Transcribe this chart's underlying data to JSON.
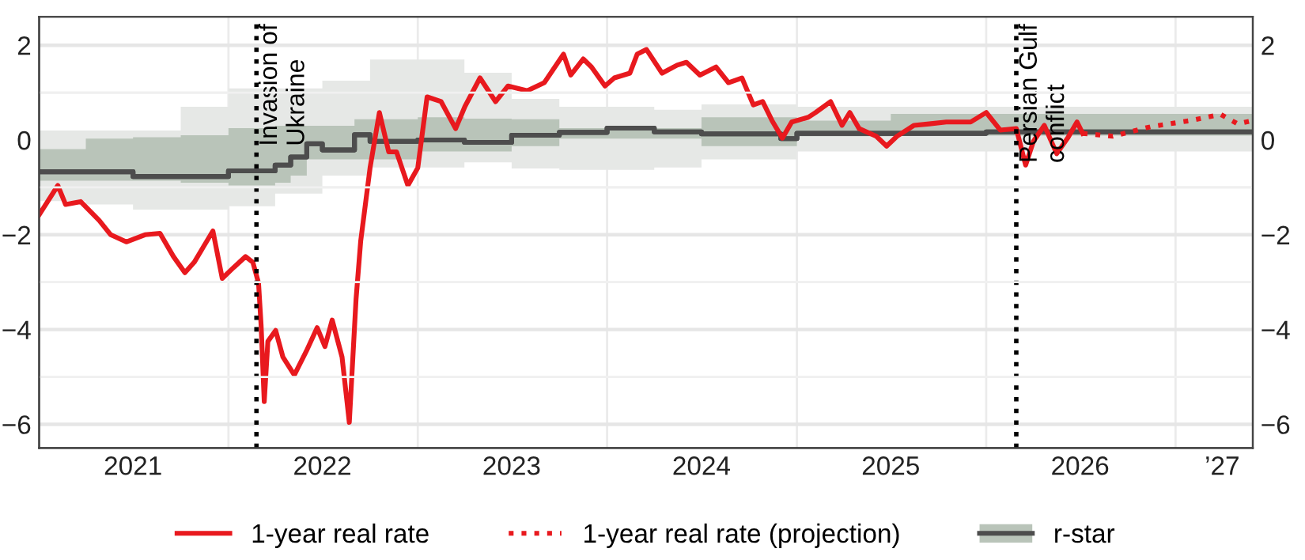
{
  "chart_data": {
    "type": "line",
    "xlim": [
      "2021-01-01",
      "2027-05-30"
    ],
    "ylim": [
      -6.5,
      2.6
    ],
    "y2lim": [
      -6.5,
      2.6
    ],
    "xticks": [
      {
        "value": "2021-07-01",
        "label": "2021"
      },
      {
        "value": "2022-01-01",
        "label": null
      },
      {
        "value": "2022-07-01",
        "label": "2022"
      },
      {
        "value": "2023-01-01",
        "label": null
      },
      {
        "value": "2023-07-01",
        "label": "2023"
      },
      {
        "value": "2024-01-01",
        "label": null
      },
      {
        "value": "2024-07-01",
        "label": "2024"
      },
      {
        "value": "2025-01-01",
        "label": null
      },
      {
        "value": "2025-07-01",
        "label": "2025"
      },
      {
        "value": "2026-01-01",
        "label": null
      },
      {
        "value": "2026-07-01",
        "label": "2026"
      },
      {
        "value": "2027-01-01",
        "label": null
      },
      {
        "value": "2027-04-01",
        "label": "’27"
      }
    ],
    "yticks": [
      -6,
      {
        "value": -5,
        "label": null
      },
      -4,
      {
        "value": -3,
        "label": null
      },
      -2,
      {
        "value": -1,
        "label": null
      },
      0,
      {
        "value": 1,
        "label": null
      },
      2
    ],
    "y2ticks": [
      -6,
      {
        "value": -5,
        "label": null
      },
      -4,
      {
        "value": -3,
        "label": null
      },
      -2,
      {
        "value": -1,
        "label": null
      },
      0,
      {
        "value": 1,
        "label": null
      },
      2
    ],
    "grid": true,
    "legend": "bottom",
    "ref_lines": [
      {
        "axis": "x",
        "value": "2022-02-24",
        "label": "Invasion of\nUkraine",
        "color": "#000000",
        "line_style": "dotted"
      },
      {
        "axis": "x",
        "value": "2026-02-28",
        "label": "Persian Gulf\nconflict",
        "color": "#000000",
        "line_style": "dotted"
      }
    ],
    "series": [
      {
        "name": "1-year real rate",
        "type": "line",
        "color": "#e8191e",
        "line_style": "solid",
        "x": [
          "2021-01-01",
          "2021-02-06",
          "2021-02-21",
          "2021-03-22",
          "2021-04-27",
          "2021-05-19",
          "2021-06-18",
          "2021-07-24",
          "2021-08-22",
          "2021-09-17",
          "2021-10-09",
          "2021-10-27",
          "2021-11-14",
          "2021-12-02",
          "2021-12-20",
          "2022-01-11",
          "2022-02-03",
          "2022-02-17",
          "2022-02-28",
          "2022-03-05",
          "2022-03-11",
          "2022-03-18",
          "2022-04-02",
          "2022-04-16",
          "2022-05-08",
          "2022-05-31",
          "2022-06-21",
          "2022-07-06",
          "2022-07-20",
          "2022-08-08",
          "2022-08-22",
          "2022-09-04",
          "2022-09-13",
          "2022-10-01",
          "2022-10-19",
          "2022-11-06",
          "2022-11-21",
          "2022-12-13",
          "2023-01-01",
          "2023-01-19",
          "2023-02-15",
          "2023-03-15",
          "2023-04-02",
          "2023-05-01",
          "2023-05-31",
          "2023-06-24",
          "2023-07-31",
          "2023-09-02",
          "2023-10-09",
          "2023-10-23",
          "2023-11-16",
          "2023-12-02",
          "2023-12-28",
          "2024-01-15",
          "2024-02-14",
          "2024-02-28",
          "2024-03-17",
          "2024-04-16",
          "2024-05-15",
          "2024-06-02",
          "2024-06-28",
          "2024-07-29",
          "2024-08-22",
          "2024-09-17",
          "2024-10-09",
          "2024-10-27",
          "2024-11-14",
          "2024-12-04",
          "2024-12-22",
          "2025-01-23",
          "2025-02-06",
          "2025-03-07",
          "2025-03-29",
          "2025-04-13",
          "2025-05-01",
          "2025-06-03",
          "2025-06-23",
          "2025-07-13",
          "2025-08-15",
          "2025-09-13",
          "2025-10-16",
          "2025-12-02",
          "2026-01-01",
          "2026-01-28",
          "2026-02-28",
          "2026-03-18",
          "2026-04-02",
          "2026-04-23",
          "2026-05-17",
          "2026-06-07",
          "2026-06-25",
          "2026-07-06"
        ],
        "values": [
          -1.58,
          -0.96,
          -1.36,
          -1.3,
          -1.7,
          -2.0,
          -2.15,
          -2.0,
          -1.97,
          -2.46,
          -2.8,
          -2.58,
          -2.25,
          -1.92,
          -2.92,
          -2.69,
          -2.46,
          -2.58,
          -3.02,
          -3.92,
          -5.52,
          -4.25,
          -4.02,
          -4.58,
          -4.96,
          -4.46,
          -3.96,
          -4.36,
          -3.8,
          -4.58,
          -5.96,
          -3.36,
          -2.13,
          -0.59,
          0.58,
          -0.25,
          -0.25,
          -0.96,
          -0.59,
          0.91,
          0.81,
          0.24,
          0.71,
          1.31,
          0.81,
          1.14,
          1.04,
          1.21,
          1.81,
          1.37,
          1.71,
          1.54,
          1.14,
          1.31,
          1.41,
          1.81,
          1.91,
          1.41,
          1.58,
          1.64,
          1.37,
          1.54,
          1.21,
          1.31,
          0.74,
          0.81,
          0.41,
          0.04,
          0.38,
          0.48,
          0.58,
          0.81,
          0.31,
          0.58,
          0.24,
          0.08,
          -0.13,
          0.08,
          0.31,
          0.34,
          0.38,
          0.38,
          0.58,
          0.21,
          0.24,
          -0.53,
          -0.03,
          0.31,
          -0.29,
          0.04,
          0.38,
          0.14
        ]
      },
      {
        "name": "1-year real rate (projection)",
        "color": "#e8191e",
        "line_style": "dotted",
        "x": [
          "2026-07-06",
          "2026-09-02",
          "2026-11-14",
          "2027-01-30",
          "2027-03-29",
          "2027-05-01",
          "2027-05-30"
        ],
        "values": [
          0.14,
          0.08,
          0.28,
          0.41,
          0.54,
          0.34,
          0.41
        ]
      },
      {
        "type": "step",
        "color": "#4d4d4d",
        "x": [
          "2021-01-01",
          "2021-04-01",
          "2021-07-01",
          "2021-10-01",
          "2022-01-01",
          "2022-04-01",
          "2022-05-01",
          "2022-06-01",
          "2022-07-01",
          "2022-09-01",
          "2022-10-01",
          "2023-01-01",
          "2023-04-01",
          "2023-07-01",
          "2023-10-01",
          "2024-01-01",
          "2024-04-01",
          "2024-07-01",
          "2024-12-01",
          "2025-01-01",
          "2025-07-01",
          "2026-01-01",
          "2027-05-30"
        ],
        "values": [
          -0.67,
          -0.67,
          -0.77,
          -0.77,
          -0.65,
          -0.53,
          -0.36,
          -0.08,
          -0.21,
          0.11,
          -0.03,
          0.0,
          -0.05,
          0.1,
          0.16,
          0.25,
          0.17,
          0.13,
          0.03,
          0.14,
          0.14,
          0.17,
          0.17
        ],
        "lower": [
          -1.29,
          -1.36,
          -1.47,
          -1.47,
          -1.4,
          -1.13,
          -1.13,
          -1.13,
          -0.75,
          -0.75,
          -0.58,
          -0.58,
          -0.47,
          -0.6,
          -0.63,
          -0.63,
          -0.58,
          -0.41,
          -0.41,
          -0.24,
          -0.24,
          -0.24,
          -0.24
        ],
        "upper": [
          0.2,
          0.2,
          0.2,
          0.7,
          1.09,
          1.09,
          1.09,
          1.09,
          1.25,
          1.25,
          1.7,
          1.7,
          1.42,
          0.87,
          0.7,
          0.7,
          0.64,
          0.75,
          0.75,
          0.7,
          0.7,
          0.7,
          0.7
        ]
      },
      {
        "name": "r-star",
        "type": "step",
        "color": "#4d4d4d",
        "x": [
          "2021-01-01",
          "2021-04-01",
          "2021-07-01",
          "2021-10-01",
          "2022-01-01",
          "2022-04-01",
          "2022-05-01",
          "2022-06-01",
          "2022-07-01",
          "2022-09-01",
          "2022-10-01",
          "2023-01-01",
          "2023-04-01",
          "2023-07-01",
          "2023-10-01",
          "2024-01-01",
          "2024-04-01",
          "2024-07-01",
          "2024-12-01",
          "2025-01-01",
          "2025-07-01",
          "2026-01-01",
          "2027-05-30"
        ],
        "values": [
          -0.67,
          -0.67,
          -0.77,
          -0.77,
          -0.65,
          -0.53,
          -0.36,
          -0.08,
          -0.21,
          0.11,
          -0.03,
          0.0,
          -0.05,
          0.1,
          0.16,
          0.25,
          0.17,
          0.13,
          0.03,
          0.14,
          0.14,
          0.17,
          0.17
        ],
        "lower": [
          -0.86,
          -0.86,
          -0.86,
          -0.9,
          -0.96,
          -0.9,
          -0.75,
          -0.41,
          -0.41,
          -0.41,
          -0.41,
          -0.24,
          -0.24,
          -0.13,
          0.03,
          0.03,
          0.03,
          -0.13,
          -0.13,
          0.08,
          0.09,
          0.09,
          0.09
        ],
        "upper": [
          -0.19,
          0.03,
          0.06,
          0.1,
          0.25,
          0.3,
          0.3,
          0.3,
          0.3,
          0.44,
          0.44,
          0.48,
          0.45,
          0.44,
          0.25,
          0.25,
          0.25,
          0.48,
          0.48,
          0.41,
          0.55,
          0.55,
          0.55
        ]
      }
    ]
  }
}
